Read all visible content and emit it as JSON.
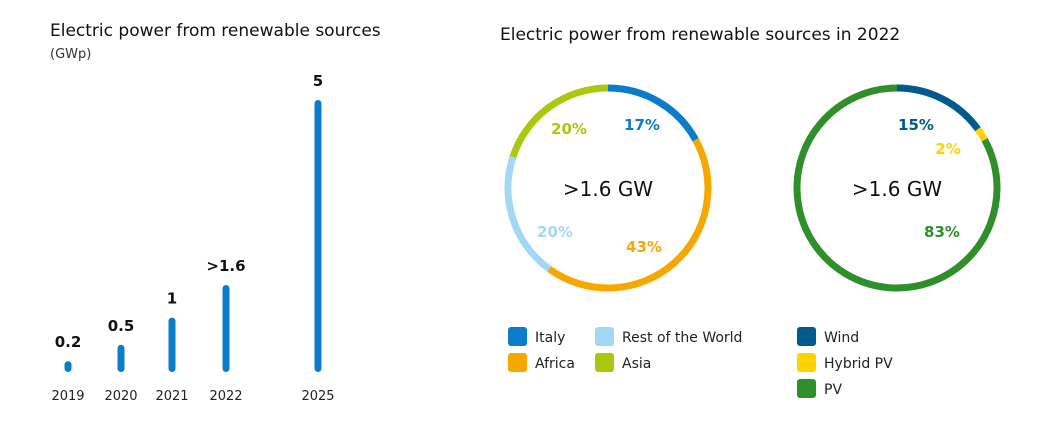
{
  "chart_data": [
    {
      "type": "bar",
      "title": "Electric power from renewable sources",
      "ylabel": "(GWp)",
      "categories": [
        "2019",
        "2020",
        "2021",
        "2022",
        "2025"
      ],
      "values": [
        0.2,
        0.5,
        1,
        1.6,
        5
      ],
      "value_labels": [
        "0.2",
        "0.5",
        "1",
        ">1.6",
        "5"
      ],
      "ylim": [
        0,
        5
      ],
      "color": "#0a7cc9",
      "grid": false
    },
    {
      "type": "pie",
      "title": "Electric power from renewable sources in 2022",
      "center_label": ">1.6 GW",
      "slices": [
        {
          "name": "Italy",
          "value": 17,
          "label": "17%",
          "color": "#0a7cc9"
        },
        {
          "name": "Africa",
          "value": 43,
          "label": "43%",
          "color": "#f7a800"
        },
        {
          "name": "Rest of the World",
          "value": 20,
          "label": "20%",
          "color": "#a3d8f4"
        },
        {
          "name": "Asia",
          "value": 20,
          "label": "20%",
          "color": "#a9c80f"
        }
      ],
      "legend": [
        "Italy",
        "Rest of the World",
        "Africa",
        "Asia"
      ]
    },
    {
      "type": "pie",
      "center_label": ">1.6 GW",
      "slices": [
        {
          "name": "Wind",
          "value": 15,
          "label": "15%",
          "color": "#005a8c"
        },
        {
          "name": "Hybrid PV",
          "value": 2,
          "label": "2%",
          "color": "#ffd200"
        },
        {
          "name": "PV",
          "value": 83,
          "label": "83%",
          "color": "#2f8f2a"
        }
      ],
      "legend": [
        "Wind",
        "Hybrid PV",
        "PV"
      ]
    }
  ]
}
